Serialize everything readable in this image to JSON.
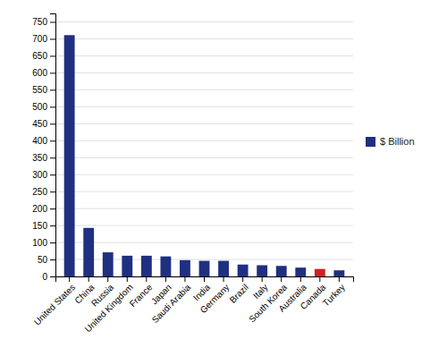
{
  "chart_data": {
    "type": "bar",
    "categories": [
      "United States",
      "China",
      "Russia",
      "United Kingdom",
      "France",
      "Japan",
      "Saudi Arabia",
      "India",
      "Germany",
      "Brazil",
      "Italy",
      "South Korea",
      "Australia",
      "Canada",
      "Turkey"
    ],
    "series": [
      {
        "name": "$ Billion",
        "color": "#1f3080",
        "colors": [
          "#1f3080",
          "#1f3080",
          "#1f3080",
          "#1f3080",
          "#1f3080",
          "#1f3080",
          "#1f3080",
          "#1f3080",
          "#1f3080",
          "#1f3080",
          "#1f3080",
          "#1f3080",
          "#1f3080",
          "#cc2222",
          "#1f3080"
        ],
        "values": [
          711,
          143,
          71,
          61,
          61,
          59,
          48,
          46,
          46,
          35,
          33,
          31,
          26,
          22,
          18
        ]
      }
    ],
    "ylim": [
      0,
      775
    ],
    "yticks": [
      0,
      50,
      100,
      150,
      200,
      250,
      300,
      350,
      400,
      450,
      500,
      550,
      600,
      650,
      700,
      750
    ],
    "grid": true,
    "legend": "right"
  }
}
